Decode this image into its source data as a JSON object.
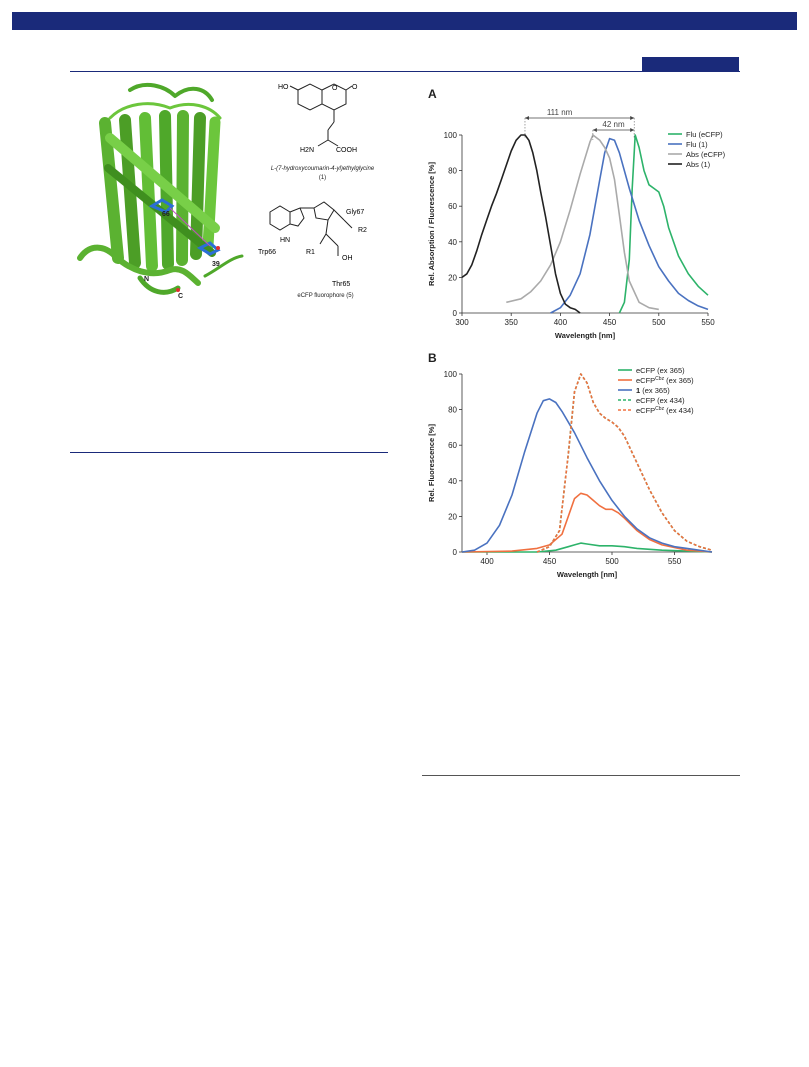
{
  "panel_a_letter": "A",
  "panel_b_letter": "B",
  "structures": {
    "compound1": {
      "name_prefix": "L",
      "name_rest": "-(7-hydroxycoumarin-4-yl)ethylglycine",
      "number": "(1)",
      "labels": {
        "ho": "HO",
        "o": "O",
        "h2n": "H2N",
        "cooh": "COOH"
      }
    },
    "fluorophore": {
      "name": "eCFP fluorophore (5)",
      "labels": {
        "gly67": "Gly67",
        "trp66": "Trp66",
        "thr65": "Thr65",
        "hn": "HN",
        "r2": "R2",
        "r1": "R1",
        "n1": "N",
        "n2": "N",
        "o1": "O",
        "o2": "O",
        "h": "H",
        "oh": "OH"
      }
    }
  },
  "protein": {
    "residue_66": "66",
    "residue_39": "39",
    "n_term": "N",
    "c_term": "C"
  },
  "chart_data": [
    {
      "panel": "A",
      "type": "line",
      "xlabel": "Wavelength [nm]",
      "ylabel": "Rel. Absorption / Fluorescence [%]",
      "xlim": [
        300,
        550
      ],
      "ylim": [
        0,
        100
      ],
      "xticks": [
        300,
        350,
        400,
        450,
        500,
        550
      ],
      "yticks": [
        0,
        20,
        40,
        60,
        80,
        100
      ],
      "legend_position": "top-right",
      "annotations": [
        {
          "text": "111 nm",
          "x_from": 364,
          "x_to": 475
        },
        {
          "text": "42 nm",
          "x_from": 433,
          "x_to": 475
        }
      ],
      "series": [
        {
          "name": "Flu (eCFP)",
          "color": "#2db36a",
          "dashed": false,
          "x": [
            460,
            465,
            470,
            473,
            476,
            480,
            485,
            490,
            495,
            500,
            505,
            510,
            520,
            530,
            540,
            550
          ],
          "y": [
            0,
            6,
            30,
            70,
            100,
            93,
            80,
            72,
            70,
            68,
            60,
            48,
            32,
            22,
            15,
            10
          ]
        },
        {
          "name": "Flu (1)",
          "color": "#4a72c0",
          "dashed": false,
          "x": [
            390,
            400,
            410,
            420,
            430,
            440,
            445,
            450,
            455,
            460,
            470,
            480,
            490,
            500,
            510,
            520,
            530,
            540,
            550
          ],
          "y": [
            0,
            3,
            10,
            22,
            44,
            75,
            90,
            98,
            97,
            90,
            70,
            52,
            38,
            26,
            18,
            11,
            7,
            4,
            2
          ]
        },
        {
          "name": "Abs (eCFP)",
          "color": "#aaaaaa",
          "dashed": false,
          "x": [
            345,
            360,
            370,
            380,
            390,
            400,
            410,
            420,
            430,
            433,
            440,
            445,
            450,
            455,
            460,
            465,
            470,
            480,
            490,
            500
          ],
          "y": [
            6,
            8,
            12,
            18,
            27,
            40,
            58,
            78,
            96,
            100,
            97,
            93,
            87,
            75,
            55,
            34,
            18,
            6,
            3,
            2
          ]
        },
        {
          "name": "Abs (1)",
          "color": "#222222",
          "dashed": false,
          "x": [
            300,
            305,
            310,
            315,
            320,
            325,
            330,
            335,
            340,
            345,
            350,
            355,
            360,
            364,
            368,
            372,
            376,
            380,
            385,
            390,
            395,
            400,
            405,
            410,
            415,
            420
          ],
          "y": [
            20,
            22,
            27,
            35,
            44,
            52,
            60,
            67,
            75,
            83,
            91,
            97,
            100,
            100,
            97,
            90,
            80,
            68,
            54,
            38,
            22,
            11,
            5,
            3,
            2,
            0
          ]
        }
      ]
    },
    {
      "panel": "B",
      "type": "line",
      "xlabel": "Wavelength [nm]",
      "ylabel": "Rel. Fluorescence [%]",
      "xlim": [
        380,
        580
      ],
      "ylim": [
        0,
        100
      ],
      "xticks": [
        400,
        450,
        500,
        550
      ],
      "yticks": [
        0,
        20,
        40,
        60,
        80,
        100
      ],
      "legend_position": "top-right",
      "series": [
        {
          "name": "eCFP (ex 365)",
          "name_main": "eCFP",
          "name_sup": "",
          "name_tail": " (ex 365)",
          "color": "#2db36a",
          "dashed": false,
          "x": [
            380,
            440,
            455,
            465,
            470,
            475,
            480,
            490,
            500,
            510,
            520,
            540,
            560,
            580
          ],
          "y": [
            0,
            0,
            1,
            3,
            4,
            5,
            4.5,
            3.5,
            3.5,
            3,
            2,
            1,
            0.5,
            0
          ]
        },
        {
          "name": "eCFP(Cbz) (ex 365)",
          "name_main": "eCFP",
          "name_sup": "Cbz",
          "name_tail": " (ex 365)",
          "color": "#f07040",
          "dashed": false,
          "x": [
            380,
            420,
            440,
            450,
            460,
            465,
            470,
            475,
            480,
            485,
            490,
            495,
            500,
            505,
            510,
            520,
            530,
            540,
            560,
            580
          ],
          "y": [
            0,
            0.5,
            2,
            4,
            10,
            20,
            30,
            33,
            32,
            29,
            26,
            24,
            24,
            22,
            19,
            12,
            7,
            4,
            1,
            0
          ]
        },
        {
          "name": "1 (ex 365)",
          "name_main": "1",
          "name_sup": "",
          "name_tail": " (ex 365)",
          "color": "#4a72c0",
          "dashed": false,
          "x": [
            380,
            390,
            400,
            410,
            420,
            430,
            440,
            445,
            450,
            455,
            460,
            470,
            480,
            490,
            500,
            510,
            520,
            530,
            540,
            550,
            560,
            580
          ],
          "y": [
            0,
            1,
            5,
            15,
            32,
            56,
            78,
            85,
            86,
            84,
            79,
            67,
            53,
            40,
            29,
            20,
            13,
            8,
            5,
            3,
            2,
            0
          ]
        },
        {
          "name": "eCFP (ex 434)",
          "name_main": "eCFP",
          "name_sup": "",
          "name_tail": " (ex 434)",
          "color": "#2db36a",
          "dashed": true,
          "x": [
            440,
            450,
            458,
            465,
            470,
            475,
            480,
            485,
            490,
            495,
            500,
            505,
            510,
            520,
            530,
            540,
            550,
            560,
            570,
            580
          ],
          "y": [
            0,
            3,
            12,
            55,
            90,
            100,
            95,
            84,
            78,
            75,
            73,
            70,
            65,
            50,
            35,
            22,
            12,
            6,
            3,
            1
          ]
        },
        {
          "name": "eCFP(Cbz) (ex 434)",
          "name_main": "eCFP",
          "name_sup": "Cbz",
          "name_tail": " (ex 434)",
          "color": "#f07040",
          "dashed": true,
          "x": [
            440,
            450,
            458,
            465,
            470,
            475,
            480,
            485,
            490,
            495,
            500,
            505,
            510,
            520,
            530,
            540,
            550,
            560,
            570,
            580
          ],
          "y": [
            0,
            3,
            12,
            55,
            90,
            100,
            95,
            84,
            78,
            75,
            73,
            70,
            65,
            50,
            35,
            22,
            12,
            6,
            3,
            1
          ]
        }
      ]
    }
  ]
}
